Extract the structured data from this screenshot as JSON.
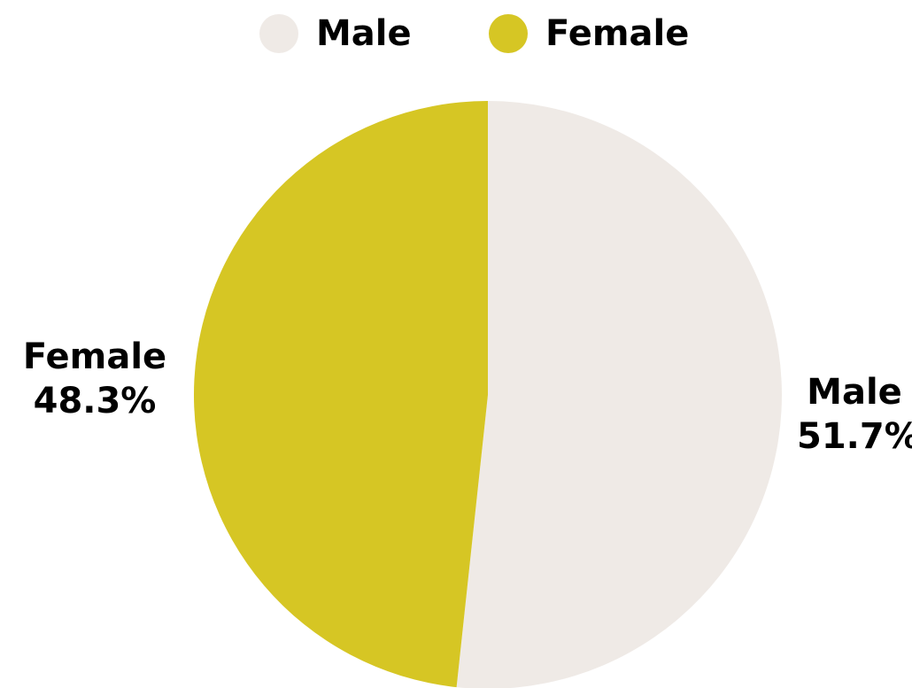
{
  "chart_data": {
    "type": "pie",
    "categories": [
      "Male",
      "Female"
    ],
    "values": [
      51.7,
      48.3
    ],
    "colors": [
      "#efeae6",
      "#d6c624"
    ],
    "labels": [
      {
        "name": "Male",
        "value": "51.7%"
      },
      {
        "name": "Female",
        "value": "48.3%"
      }
    ],
    "legend": {
      "placement": "top-center",
      "entries": [
        {
          "name": "Male",
          "color": "#efeae6"
        },
        {
          "name": "Female",
          "color": "#d6c624"
        }
      ]
    },
    "start_angle": "top",
    "direction": "clockwise"
  }
}
